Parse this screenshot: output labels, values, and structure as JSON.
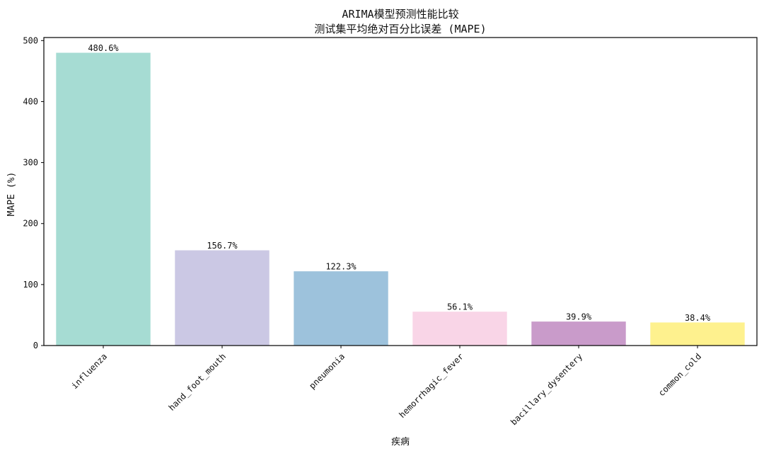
{
  "chart_data": {
    "type": "bar",
    "title": "ARIMA模型预测性能比较",
    "subtitle": "测试集平均绝对百分比误差 (MAPE)",
    "xlabel": "疾病",
    "ylabel": "MAPE (%)",
    "categories": [
      "influenza",
      "hand_foot_mouth",
      "pneumonia",
      "hemorrhagic_fever",
      "bacillary_dysentery",
      "common_cold"
    ],
    "values": [
      480.6,
      156.7,
      122.3,
      56.1,
      39.9,
      38.4
    ],
    "data_labels": [
      "480.6%",
      "156.7%",
      "122.3%",
      "56.1%",
      "39.9%",
      "38.4%"
    ],
    "colors": [
      "#a6dcd3",
      "#cbc8e4",
      "#9dc2dc",
      "#f9d5e7",
      "#c99bca",
      "#fef18e"
    ],
    "ylim": [
      0,
      505
    ],
    "yticks": [
      0,
      100,
      200,
      300,
      400,
      500
    ],
    "ytick_labels": [
      "0",
      "100",
      "200",
      "300",
      "400",
      "500"
    ],
    "grid": false,
    "legend": false
  }
}
